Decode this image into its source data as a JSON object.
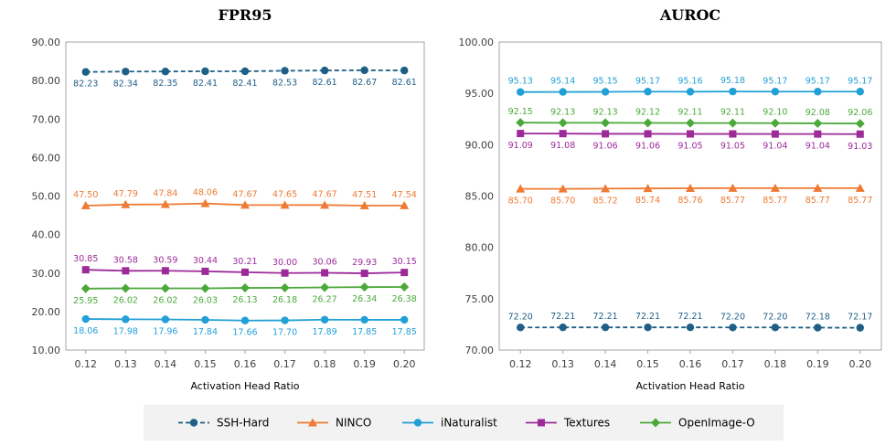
{
  "chart_data": [
    {
      "type": "line",
      "title": "FPR95",
      "xlabel": "Activation Head Ratio",
      "ylabel": "",
      "ylim": [
        10,
        90
      ],
      "yticks": [
        "10.00",
        "20.00",
        "30.00",
        "40.00",
        "50.00",
        "60.00",
        "70.00",
        "80.00",
        "90.00"
      ],
      "grid": false,
      "x": [
        "0.12",
        "0.13",
        "0.14",
        "0.15",
        "0.16",
        "0.17",
        "0.18",
        "0.19",
        "0.20"
      ],
      "series": [
        {
          "name": "SSH-Hard",
          "color": "#1f5f86",
          "dashed": true,
          "marker": "circle",
          "label_pos": "below",
          "values": [
            82.23,
            82.34,
            82.35,
            82.41,
            82.41,
            82.53,
            82.61,
            82.67,
            82.61
          ],
          "labels": [
            "82.23",
            "82.34",
            "82.35",
            "82.41",
            "82.41",
            "82.53",
            "82.61",
            "82.67",
            "82.61"
          ]
        },
        {
          "name": "NINCO",
          "color": "#ef7a34",
          "dashed": false,
          "marker": "triangle",
          "label_pos": "above",
          "values": [
            47.5,
            47.79,
            47.84,
            48.06,
            47.67,
            47.65,
            47.67,
            47.51,
            47.54
          ],
          "labels": [
            "47.50",
            "47.79",
            "47.84",
            "48.06",
            "47.67",
            "47.65",
            "47.67",
            "47.51",
            "47.54"
          ]
        },
        {
          "name": "iNaturalist",
          "color": "#22a0d6",
          "dashed": false,
          "marker": "circle",
          "label_pos": "below",
          "values": [
            18.06,
            17.98,
            17.96,
            17.84,
            17.66,
            17.7,
            17.89,
            17.85,
            17.85
          ],
          "labels": [
            "18.06",
            "17.98",
            "17.96",
            "17.84",
            "17.66",
            "17.70",
            "17.89",
            "17.85",
            "17.85"
          ]
        },
        {
          "name": "Textures",
          "color": "#9c2a99",
          "dashed": false,
          "marker": "square",
          "label_pos": "above",
          "values": [
            30.85,
            30.58,
            30.59,
            30.44,
            30.21,
            30.0,
            30.06,
            29.93,
            30.15
          ],
          "labels": [
            "30.85",
            "30.58",
            "30.59",
            "30.44",
            "30.21",
            "30.00",
            "30.06",
            "29.93",
            "30.15"
          ]
        },
        {
          "name": "OpenImage-O",
          "color": "#4ba93a",
          "dashed": false,
          "marker": "diamond",
          "label_pos": "below",
          "values": [
            25.95,
            26.02,
            26.02,
            26.03,
            26.13,
            26.18,
            26.27,
            26.34,
            26.38
          ],
          "labels": [
            "25.95",
            "26.02",
            "26.02",
            "26.03",
            "26.13",
            "26.18",
            "26.27",
            "26.34",
            "26.38"
          ]
        }
      ]
    },
    {
      "type": "line",
      "title": "AUROC",
      "xlabel": "Activation Head Ratio",
      "ylabel": "",
      "ylim": [
        70,
        100
      ],
      "yticks": [
        "70.00",
        "75.00",
        "80.00",
        "85.00",
        "90.00",
        "95.00",
        "100.00"
      ],
      "grid": false,
      "x": [
        "0.12",
        "0.13",
        "0.14",
        "0.15",
        "0.16",
        "0.17",
        "0.18",
        "0.19",
        "0.20"
      ],
      "series": [
        {
          "name": "SSH-Hard",
          "color": "#1f5f86",
          "dashed": true,
          "marker": "circle",
          "label_pos": "above",
          "values": [
            72.2,
            72.21,
            72.21,
            72.21,
            72.21,
            72.2,
            72.2,
            72.18,
            72.17
          ],
          "labels": [
            "72.20",
            "72.21",
            "72.21",
            "72.21",
            "72.21",
            "72.20",
            "72.20",
            "72.18",
            "72.17"
          ]
        },
        {
          "name": "NINCO",
          "color": "#ef7a34",
          "dashed": false,
          "marker": "triangle",
          "label_pos": "below",
          "values": [
            85.7,
            85.7,
            85.72,
            85.74,
            85.76,
            85.77,
            85.77,
            85.77,
            85.77
          ],
          "labels": [
            "85.70",
            "85.70",
            "85.72",
            "85.74",
            "85.76",
            "85.77",
            "85.77",
            "85.77",
            "85.77"
          ]
        },
        {
          "name": "iNaturalist",
          "color": "#22a0d6",
          "dashed": false,
          "marker": "circle",
          "label_pos": "above",
          "values": [
            95.13,
            95.14,
            95.15,
            95.17,
            95.16,
            95.18,
            95.17,
            95.17,
            95.17
          ],
          "labels": [
            "95.13",
            "95.14",
            "95.15",
            "95.17",
            "95.16",
            "95.18",
            "95.17",
            "95.17",
            "95.17"
          ]
        },
        {
          "name": "Textures",
          "color": "#9c2a99",
          "dashed": false,
          "marker": "square",
          "label_pos": "below",
          "values": [
            91.09,
            91.08,
            91.06,
            91.06,
            91.05,
            91.05,
            91.04,
            91.04,
            91.03
          ],
          "labels": [
            "91.09",
            "91.08",
            "91.06",
            "91.06",
            "91.05",
            "91.05",
            "91.04",
            "91.04",
            "91.03"
          ]
        },
        {
          "name": "OpenImage-O",
          "color": "#4ba93a",
          "dashed": false,
          "marker": "diamond",
          "label_pos": "above",
          "values": [
            92.15,
            92.13,
            92.13,
            92.12,
            92.11,
            92.11,
            92.1,
            92.08,
            92.06
          ],
          "labels": [
            "92.15",
            "92.13",
            "92.13",
            "92.12",
            "92.11",
            "92.11",
            "92.10",
            "92.08",
            "92.06"
          ]
        }
      ]
    }
  ],
  "legend": {
    "placement": "bottom-center",
    "items": [
      "SSH-Hard",
      "NINCO",
      "iNaturalist",
      "Textures",
      "OpenImage-O"
    ]
  }
}
